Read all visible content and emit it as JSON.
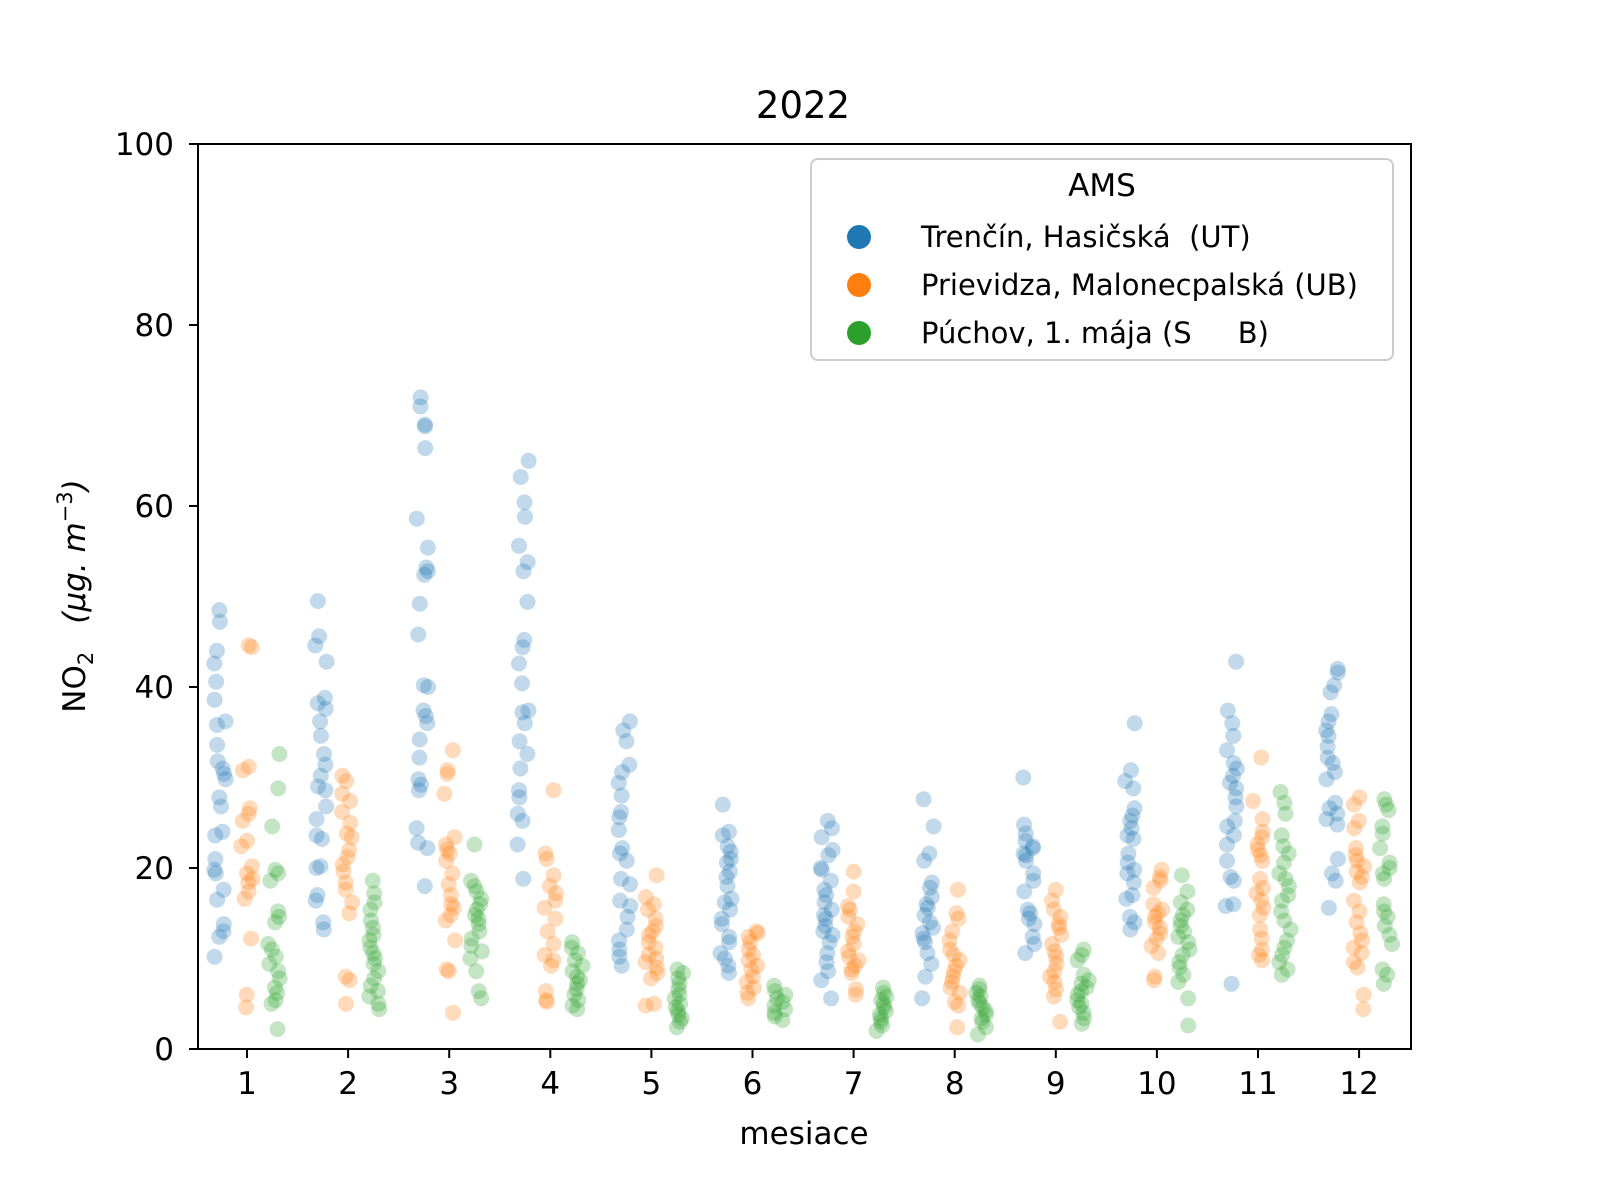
{
  "chart_data": {
    "type": "scatter",
    "title": "2022",
    "xlabel": "mesiace",
    "ylabel": "NO",
    "ylabel_subscript": "2",
    "ylabel_unit": "(μg. m",
    "ylabel_unit_exp": "−3",
    "ylabel_unit_close": ")",
    "categories": [
      "1",
      "2",
      "3",
      "4",
      "5",
      "6",
      "7",
      "8",
      "9",
      "10",
      "11",
      "12"
    ],
    "ylim": [
      0,
      100
    ],
    "yticks": [
      "0",
      "20",
      "40",
      "60",
      "80",
      "100"
    ],
    "grid": false,
    "legend": {
      "title": "AMS",
      "position": "top-right"
    },
    "series": [
      {
        "name": "Trenčín, Hasičská  (UT)",
        "color": "#1f77b4",
        "values": [
          [
            48.5,
            47.2,
            44,
            42.6,
            40.6,
            38.6,
            36.2,
            35.8,
            33.6,
            31.8,
            31,
            30.4,
            29.8,
            27.8,
            26.8,
            24,
            23.6,
            21,
            19.8,
            19.4,
            17.6,
            16.5,
            13.8,
            13,
            12.4,
            10.2
          ],
          [
            49.5,
            45.6,
            44.6,
            42.8,
            38.8,
            38.2,
            37.6,
            36.2,
            34.6,
            32.6,
            31.4,
            30.2,
            29,
            28.6,
            26.8,
            25.4,
            23.6,
            23.2,
            20,
            20.2,
            17,
            16.4,
            14,
            13.2
          ],
          [
            72,
            71,
            69,
            68.8,
            66.4,
            58.6,
            55.4,
            53.2,
            52.8,
            52.4,
            49.2,
            45.8,
            40.2,
            40,
            37.4,
            36.8,
            36,
            34.2,
            32.2,
            29.8,
            29.2,
            28.6,
            24.4,
            22.8,
            22.2,
            18
          ],
          [
            65,
            63.2,
            60.4,
            58.8,
            55.6,
            53.8,
            52.8,
            49.4,
            45.2,
            44.4,
            42.6,
            40.4,
            37.4,
            37.2,
            36,
            34,
            32.6,
            31,
            28.6,
            27.8,
            26,
            25.2,
            22.6,
            18.8
          ],
          [
            36.2,
            35.2,
            34,
            31.4,
            30.6,
            29.4,
            28,
            26.2,
            25.6,
            24.2,
            22.2,
            21.6,
            20.8,
            18.8,
            18.2,
            16.4,
            15.8,
            14.6,
            13.2,
            12,
            11,
            10.2,
            9.2
          ],
          [
            27,
            24,
            23.6,
            22.4,
            21.8,
            21,
            20.6,
            19.6,
            19,
            18,
            16.6,
            16.2,
            15.4,
            14.4,
            13.8,
            12.4,
            11.8,
            10.6,
            10,
            9.2,
            8.4
          ],
          [
            25.2,
            24.4,
            23.4,
            22,
            21.4,
            20,
            19.8,
            18.6,
            17.6,
            17,
            16.2,
            15.4,
            14.8,
            14.4,
            13.6,
            13,
            12.6,
            11.8,
            10.6,
            9.6,
            8.6,
            7.6,
            5.6
          ],
          [
            27.6,
            24.6,
            21.6,
            20.8,
            18.4,
            17.8,
            16.8,
            16,
            15.6,
            14.8,
            14,
            13.4,
            12.8,
            12.2,
            11.8,
            10.6,
            9.4,
            8,
            5.6
          ],
          [
            30,
            24.8,
            23.8,
            23,
            22.4,
            22.2,
            21.6,
            21.4,
            20.8,
            19.4,
            18.6,
            17.4,
            15.4,
            15,
            14.4,
            13.8,
            12.4,
            11.6,
            10.6
          ],
          [
            36,
            30.8,
            29.6,
            28.8,
            26.6,
            25.8,
            25.2,
            24.4,
            23.6,
            23.2,
            21.6,
            20.6,
            19.8,
            19.4,
            18.4,
            17,
            16.6,
            14.6,
            14,
            13.2
          ],
          [
            42.8,
            37.4,
            36,
            34.6,
            33,
            31.6,
            31,
            30.2,
            29.4,
            28.8,
            27.8,
            26.8,
            25.2,
            24.6,
            23.6,
            22.6,
            20.8,
            19,
            18.6,
            16,
            15.8,
            7.2
          ],
          [
            42,
            41.6,
            40.2,
            39.4,
            37,
            36.2,
            35.2,
            34.6,
            33.4,
            32.2,
            31.6,
            30.6,
            29.8,
            27.2,
            26.6,
            26,
            25.4,
            24.8,
            21,
            19.4,
            18.6,
            15.6
          ]
        ]
      },
      {
        "name": "Prievidza, Malonecpalská (UB)",
        "color": "#ff7f0e",
        "values": [
          [
            44.6,
            44.4,
            31.2,
            30.8,
            26.6,
            26,
            25.2,
            23,
            22.4,
            20.2,
            19.4,
            18.8,
            18.4,
            17.4,
            16.6,
            12.2,
            6,
            4.6
          ],
          [
            30.2,
            29.6,
            28.2,
            27.4,
            26.2,
            25,
            23.8,
            23.4,
            22,
            21.2,
            20.4,
            19.6,
            18.4,
            17.6,
            16.2,
            15,
            8,
            7.6,
            5
          ],
          [
            33,
            30.8,
            30.4,
            28.2,
            23.4,
            22.6,
            22,
            21.6,
            20.8,
            19.4,
            18.2,
            17,
            16,
            15.6,
            14.8,
            14.2,
            12,
            8.8,
            8.6,
            4
          ],
          [
            28.6,
            21.6,
            21,
            19.2,
            18,
            17.2,
            16.4,
            15.6,
            14.4,
            13,
            11.6,
            10.4,
            9.8,
            9.2,
            6.4,
            5.4,
            5.2
          ],
          [
            19.2,
            16.8,
            16,
            15.4,
            14.4,
            13.6,
            13,
            12.6,
            11.8,
            11.2,
            10.4,
            10,
            9.6,
            9,
            8.4,
            7.8,
            5,
            4.8
          ],
          [
            13,
            12.8,
            12.4,
            11.8,
            11,
            10.4,
            9.8,
            9.2,
            8.8,
            8,
            7.4,
            6.8,
            6.2,
            5.6
          ],
          [
            19.6,
            17.4,
            15.8,
            15.4,
            14.6,
            13.8,
            13,
            12.4,
            11.6,
            10.8,
            10.2,
            9.8,
            9.2,
            8.8,
            8.4,
            6.6,
            6
          ],
          [
            17.6,
            15,
            14.4,
            13,
            12,
            11,
            10.4,
            9.8,
            9.2,
            8.6,
            8,
            7.4,
            6.8,
            6.2,
            5.2,
            4.8,
            2.4
          ],
          [
            17.6,
            16.4,
            15.4,
            14.6,
            13.8,
            13.4,
            12.6,
            11.6,
            10.8,
            10.2,
            9.4,
            8.6,
            8,
            7.4,
            6.6,
            5.8,
            3
          ],
          [
            19.8,
            19,
            18.6,
            17.8,
            16,
            15.4,
            15,
            14.6,
            14,
            13.4,
            12.8,
            12.2,
            11.4,
            10.6,
            8,
            7.6
          ],
          [
            32.2,
            27.4,
            25.4,
            24,
            23.4,
            22.6,
            22,
            21.4,
            20.8,
            18.8,
            17.8,
            17.2,
            16.4,
            15.6,
            14.8,
            13.2,
            12.2,
            11,
            10.4,
            9.8
          ],
          [
            27.8,
            27,
            25.2,
            24.4,
            22.2,
            21.4,
            20.8,
            20.2,
            19.6,
            19,
            18.4,
            16.4,
            15.2,
            14,
            12.8,
            12,
            11.2,
            10.6,
            9.6,
            9,
            6,
            4.4
          ]
        ]
      },
      {
        "name": "Púchov, 1. mája (S     B)",
        "color": "#2ca02c",
        "values": [
          [
            32.6,
            28.8,
            24.6,
            19.8,
            19.4,
            18.6,
            15.2,
            14.6,
            14,
            11.6,
            11,
            10.2,
            9.4,
            8.6,
            7.8,
            6.8,
            6.2,
            5.4,
            5,
            2.2
          ],
          [
            18.6,
            17.2,
            16.2,
            15.4,
            14.2,
            13.4,
            12.6,
            12,
            11.2,
            10.6,
            10,
            9.4,
            8.6,
            7.8,
            7,
            6.4,
            5.8,
            5,
            4.4
          ],
          [
            22.6,
            18.6,
            18,
            17.4,
            16.6,
            16,
            15.4,
            14.8,
            14.4,
            13.8,
            13,
            12.2,
            11.4,
            10.8,
            10,
            8.6,
            6.4,
            5.6
          ],
          [
            11.8,
            11.2,
            10.6,
            9.8,
            9.2,
            8.6,
            8,
            7.6,
            7.2,
            6.6,
            6,
            5.4,
            4.8,
            4.4
          ],
          [
            8.8,
            8.4,
            7.8,
            7.2,
            6.6,
            6,
            5.6,
            5,
            4.6,
            4.2,
            3.8,
            3.4,
            3,
            2.4
          ],
          [
            7,
            6.4,
            6,
            5.6,
            5.2,
            4.8,
            4.4,
            4,
            3.6,
            3.2
          ],
          [
            6.8,
            6.2,
            5.8,
            5.4,
            5,
            4.6,
            4.2,
            3.8,
            3.4,
            3,
            2.6,
            2
          ],
          [
            7,
            6.6,
            6.2,
            5.8,
            5.4,
            5,
            4.6,
            4.2,
            3.8,
            3.4,
            3,
            2.4,
            1.6
          ],
          [
            11,
            10.4,
            9.8,
            8.2,
            7.6,
            7.2,
            6.8,
            6.4,
            6,
            5.4,
            5,
            4.6,
            4,
            3.4,
            2.8
          ],
          [
            19.2,
            17.4,
            16.2,
            15.4,
            14.8,
            14.2,
            13.6,
            13,
            12.4,
            11.8,
            11,
            10.4,
            9.6,
            9,
            8.2,
            7.4,
            5.6,
            2.6
          ],
          [
            28.4,
            27.2,
            26,
            23.6,
            22.4,
            21.6,
            20.6,
            19.4,
            18.8,
            18,
            17,
            16.4,
            15.2,
            14.2,
            13.2,
            12,
            11.2,
            10.4,
            9.6,
            8.8,
            8.2
          ],
          [
            27.6,
            27,
            26.4,
            24.6,
            23.8,
            22.2,
            20.6,
            20,
            19.4,
            18.8,
            16,
            15.2,
            14.6,
            13.6,
            12.6,
            11.6,
            8.8,
            8.2,
            7.2
          ]
        ]
      }
    ]
  }
}
